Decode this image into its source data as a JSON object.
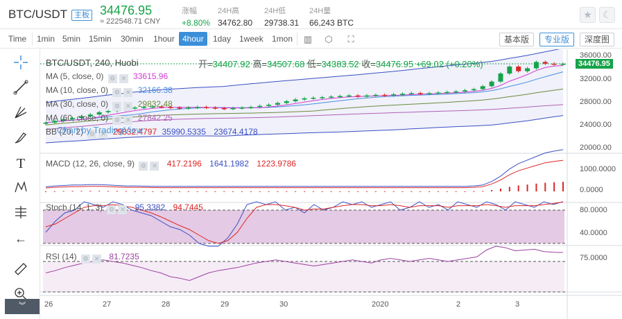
{
  "header": {
    "symbol": "BTC/USDT",
    "market_tag": "主板",
    "last_price": "34476.95",
    "cny_price": "≈ 222548.71 CNY",
    "change_label": "涨幅",
    "change_value": "+8.80%",
    "high_label": "24H高",
    "high_value": "34762.80",
    "low_label": "24H低",
    "low_value": "29738.31",
    "volume_label": "24H量",
    "volume_value": "66,243 BTC"
  },
  "timeframes": [
    {
      "label": "Time"
    },
    {
      "label": "1min"
    },
    {
      "label": "5min"
    },
    {
      "label": "15min"
    },
    {
      "label": "30min"
    },
    {
      "label": "1hour"
    },
    {
      "label": "4hour"
    },
    {
      "label": "1day"
    },
    {
      "label": "1week"
    },
    {
      "label": "1mon"
    }
  ],
  "active_timeframe": "4hour",
  "view_buttons": {
    "basic": "基本版",
    "pro": "专业版",
    "depth": "深度图"
  },
  "legend": {
    "title": "BTC/USDT, 240, Huobi",
    "open_label": "开=",
    "open": "34407.92",
    "high_label": "高=",
    "high": "34507.68",
    "low_label": "低=",
    "low": "34383.52",
    "close_label": "收=",
    "close": "34476.95",
    "change": "+69.02 (+0.20%)",
    "ma5_label": "MA (5, close, 0)",
    "ma5": "33615.96",
    "ma10_label": "MA (10, close, 0)",
    "ma10": "32166.38",
    "ma30_label": "MA (30, close, 0)",
    "ma30": "29832.48",
    "ma60_label": "MA (60, close, 0)",
    "ma60": "27842.25",
    "bb_label": "BB (20, 2)",
    "bb_mid": "29832.4797",
    "bb_up": "35990.5335",
    "bb_low": "23674.4178",
    "macd_label": "MACD (12, 26, close, 9)",
    "macd_hist": "417.2196",
    "macd": "1641.1982",
    "macd_signal": "1223.9786",
    "stoch_label": "Stoch (14, 1, 3)",
    "stoch_k": "95.3382",
    "stoch_d": "94.7445",
    "rsi_label": "RSI (14)",
    "rsi": "81.7235"
  },
  "watermark": "Chart by TradingView",
  "axes": {
    "main_ticks": [
      "36000.00",
      "32000.00",
      "28000.00",
      "24000.00",
      "20000.00"
    ],
    "current_price_tag": "34476.95",
    "macd_ticks": [
      "1000.0000",
      "0.0000"
    ],
    "stoch_ticks": [
      "80.0000",
      "40.0000"
    ],
    "rsi_ticks": [
      "75.0000"
    ],
    "x_ticks": [
      "26",
      "27",
      "28",
      "29",
      "30",
      "2020",
      "2",
      "3"
    ]
  },
  "colors": {
    "up": "#16a34a",
    "down": "#dc2626",
    "bb": "#3a4fc2",
    "ma5": "#d23bd2",
    "ma10": "#4a8ee0",
    "ma30": "#6c8a3c",
    "ma60": "#b35fb5",
    "accent": "#3b8fd9"
  },
  "chart_data": {
    "type": "candlestick",
    "x_range_labels": [
      "26",
      "27",
      "28",
      "29",
      "30",
      "2020",
      "2",
      "3"
    ],
    "ylim": [
      19000,
      37000
    ],
    "close_series": [
      24300,
      24600,
      24900,
      25100,
      25400,
      25700,
      26100,
      26300,
      26500,
      26800,
      26900,
      27000,
      27100,
      27000,
      26900,
      26800,
      26900,
      27000,
      26900,
      26800,
      26700,
      26800,
      26900,
      27000,
      27200,
      27400,
      27700,
      28000,
      28300,
      28500,
      28600,
      28700,
      28800,
      28900,
      29000,
      28800,
      29000,
      29100,
      29000,
      29200,
      29300,
      29400,
      29300,
      29400,
      29500,
      29600,
      29700,
      29900,
      30100,
      30600,
      31400,
      32800,
      34000,
      33200,
      33700,
      34800,
      34500,
      34400,
      34476.95
    ],
    "macd_hist": [
      0,
      10,
      15,
      20,
      20,
      25,
      25,
      20,
      15,
      10,
      10,
      8,
      6,
      5,
      5,
      5,
      5,
      5,
      5,
      5,
      5,
      5,
      5,
      5,
      5,
      5,
      5,
      5,
      5,
      5,
      5,
      5,
      5,
      5,
      5,
      5,
      5,
      5,
      5,
      5,
      5,
      5,
      5,
      5,
      5,
      5,
      5,
      5,
      10,
      20,
      60,
      120,
      200,
      260,
      300,
      340,
      380,
      400,
      417.2196
    ],
    "stoch_k": [
      40,
      60,
      75,
      80,
      95,
      90,
      85,
      95,
      90,
      80,
      75,
      70,
      60,
      50,
      45,
      35,
      20,
      15,
      15,
      30,
      55,
      90,
      95,
      90,
      95,
      80,
      85,
      75,
      90,
      80,
      85,
      95,
      90,
      95,
      85,
      90,
      95,
      80,
      85,
      95,
      85,
      90,
      80,
      95,
      90,
      85,
      95,
      90,
      80,
      95,
      90,
      85,
      95,
      90,
      95.3382
    ],
    "stoch_d": [
      50,
      55,
      65,
      75,
      85,
      88,
      88,
      90,
      88,
      85,
      80,
      75,
      68,
      60,
      52,
      45,
      35,
      25,
      20,
      25,
      40,
      65,
      85,
      90,
      90,
      88,
      85,
      80,
      82,
      82,
      85,
      88,
      90,
      90,
      88,
      88,
      90,
      88,
      85,
      88,
      88,
      88,
      85,
      88,
      88,
      88,
      90,
      88,
      85,
      88,
      88,
      88,
      90,
      92,
      94.7445
    ],
    "rsi": [
      55,
      58,
      62,
      65,
      68,
      70,
      72,
      70,
      68,
      65,
      62,
      58,
      55,
      50,
      48,
      45,
      50,
      55,
      58,
      60,
      62,
      65,
      68,
      70,
      72,
      70,
      68,
      66,
      64,
      66,
      68,
      70,
      72,
      70,
      68,
      72,
      74,
      72,
      70,
      72,
      74,
      72,
      70,
      72,
      74,
      76,
      85,
      90,
      88,
      84,
      85,
      86,
      83,
      82,
      81.7235
    ]
  }
}
